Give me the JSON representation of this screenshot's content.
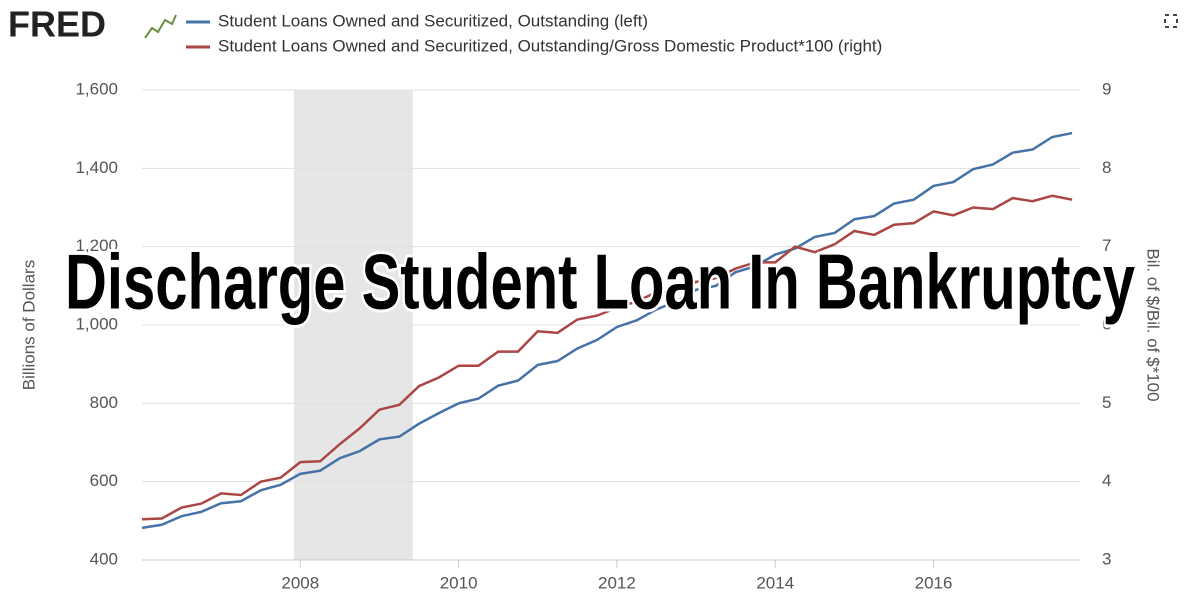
{
  "brand": "FRED",
  "chart_data": {
    "type": "line",
    "x": [
      2006,
      2006.25,
      2006.5,
      2006.75,
      2007,
      2007.25,
      2007.5,
      2007.75,
      2008,
      2008.25,
      2008.5,
      2008.75,
      2009,
      2009.25,
      2009.5,
      2009.75,
      2010,
      2010.25,
      2010.5,
      2010.75,
      2011,
      2011.25,
      2011.5,
      2011.75,
      2012,
      2012.25,
      2012.5,
      2012.75,
      2013,
      2013.25,
      2013.5,
      2013.75,
      2014,
      2014.25,
      2014.5,
      2014.75,
      2015,
      2015.25,
      2015.5,
      2015.75,
      2016,
      2016.25,
      2016.5,
      2016.75,
      2017,
      2017.25,
      2017.5,
      2017.75
    ],
    "series": [
      {
        "name": "Student Loans Owned and Securitized, Outstanding (left)",
        "color": "#4572a7",
        "values": [
          482,
          490,
          512,
          523,
          545,
          550,
          578,
          592,
          620,
          628,
          660,
          678,
          708,
          715,
          748,
          775,
          800,
          812,
          845,
          858,
          898,
          908,
          940,
          962,
          995,
          1012,
          1040,
          1060,
          1090,
          1100,
          1135,
          1150,
          1180,
          1195,
          1225,
          1235,
          1270,
          1278,
          1310,
          1320,
          1355,
          1365,
          1398,
          1410,
          1440,
          1448,
          1480,
          1490
        ]
      },
      {
        "name": "Student Loans Owned and Securitized, Outstanding/Gross Domestic Product*100 (right)",
        "color": "#aa4643",
        "axis": "y2",
        "values": [
          3.52,
          3.53,
          3.67,
          3.72,
          3.85,
          3.83,
          4.0,
          4.05,
          4.25,
          4.26,
          4.48,
          4.68,
          4.92,
          4.98,
          5.22,
          5.33,
          5.48,
          5.48,
          5.66,
          5.66,
          5.92,
          5.9,
          6.07,
          6.12,
          6.22,
          6.3,
          6.42,
          6.42,
          6.55,
          6.6,
          6.72,
          6.8,
          6.8,
          7.0,
          6.93,
          7.03,
          7.2,
          7.15,
          7.28,
          7.3,
          7.45,
          7.4,
          7.5,
          7.48,
          7.62,
          7.58,
          7.65,
          7.6
        ]
      }
    ],
    "xlim": [
      2006,
      2017.85
    ],
    "xticks": [
      2008,
      2010,
      2012,
      2014,
      2016
    ],
    "ylim": [
      400,
      1600
    ],
    "yticks": [
      400,
      600,
      800,
      {
        "value": 1000,
        "label": "1,000"
      },
      {
        "value": 1200,
        "label": "1,200"
      },
      {
        "value": 1400,
        "label": "1,400"
      },
      {
        "value": 1600,
        "label": "1,600"
      }
    ],
    "y2lim": [
      3,
      9
    ],
    "y2ticks": [
      3,
      4,
      5,
      6,
      7,
      8,
      9
    ],
    "ylabel": "Billions of Dollars",
    "y2label": "Bil. of $/Bil. of $*100",
    "recession": [
      2007.92,
      2009.42
    ],
    "grid": true,
    "overlay_title": "Discharge Student Loan In Bankruptcy"
  }
}
